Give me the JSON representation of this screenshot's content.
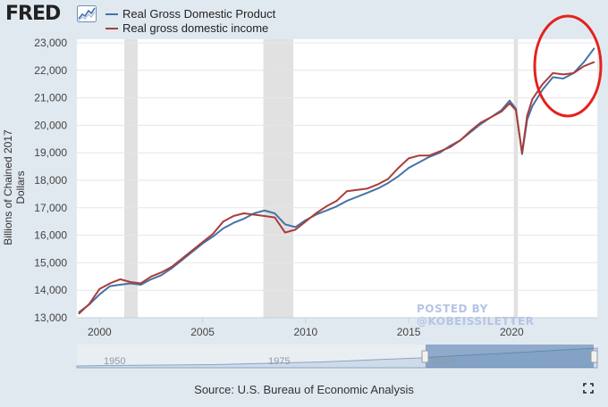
{
  "header": {
    "logo_text": "FRED",
    "logo_icon": "trend-chart-icon"
  },
  "legend": [
    {
      "label": "Real Gross Domestic Product",
      "color": "#4572a7"
    },
    {
      "label": "Real gross domestic income",
      "color": "#aa3d3a"
    }
  ],
  "watermark": "POSTED BY @KOBEISSILETTER",
  "source": "Source: U.S. Bureau of Economic Analysis",
  "navigator": {
    "labels": [
      "1950",
      "1975",
      "2000"
    ]
  },
  "annotation": {
    "shape": "ellipse",
    "color": "#e3221d"
  },
  "chart_data": {
    "type": "line",
    "ylabel": "Billions of Chained 2017 Dollars",
    "xlim": [
      1998.9,
      2024.15
    ],
    "ylim": [
      13000,
      23000
    ],
    "yticks": [
      13000,
      14000,
      15000,
      16000,
      17000,
      18000,
      19000,
      20000,
      21000,
      22000,
      23000
    ],
    "ytick_labels": [
      "13,000",
      "14,000",
      "15,000",
      "16,000",
      "17,000",
      "18,000",
      "19,000",
      "20,000",
      "21,000",
      "22,000",
      "23,000"
    ],
    "xticks": [
      2000,
      2005,
      2010,
      2015,
      2020
    ],
    "xtick_labels": [
      "2000",
      "2005",
      "2010",
      "2015",
      "2020"
    ],
    "grid": "horizontal",
    "legend_position": "top-left",
    "recessions": [
      [
        2001.2,
        2001.85
      ],
      [
        2007.95,
        2009.4
      ],
      [
        2020.1,
        2020.3
      ]
    ],
    "series": [
      {
        "name": "Real Gross Domestic Product",
        "color": "#4572a7",
        "x": [
          1999.0,
          1999.5,
          2000.0,
          2000.5,
          2001.0,
          2001.5,
          2002.0,
          2002.5,
          2003.0,
          2003.5,
          2004.0,
          2004.5,
          2005.0,
          2005.5,
          2006.0,
          2006.5,
          2007.0,
          2007.5,
          2008.0,
          2008.5,
          2009.0,
          2009.5,
          2010.0,
          2010.5,
          2011.0,
          2011.5,
          2012.0,
          2012.5,
          2013.0,
          2013.5,
          2014.0,
          2014.5,
          2015.0,
          2015.5,
          2016.0,
          2016.5,
          2017.0,
          2017.5,
          2018.0,
          2018.5,
          2019.0,
          2019.5,
          2019.9,
          2020.2,
          2020.5,
          2020.75,
          2021.0,
          2021.5,
          2022.0,
          2022.5,
          2023.0,
          2023.5,
          2024.0
        ],
        "values": [
          13200,
          13480,
          13850,
          14150,
          14200,
          14250,
          14200,
          14400,
          14550,
          14800,
          15100,
          15400,
          15700,
          15950,
          16250,
          16450,
          16600,
          16800,
          16900,
          16800,
          16400,
          16300,
          16550,
          16750,
          16900,
          17050,
          17250,
          17400,
          17550,
          17700,
          17900,
          18150,
          18450,
          18650,
          18850,
          19000,
          19250,
          19450,
          19750,
          20050,
          20300,
          20550,
          20900,
          20600,
          18950,
          20200,
          20700,
          21300,
          21750,
          21700,
          21900,
          22300,
          22800
        ]
      },
      {
        "name": "Real gross domestic income",
        "color": "#aa3d3a",
        "x": [
          1999.0,
          1999.5,
          2000.0,
          2000.5,
          2001.0,
          2001.5,
          2002.0,
          2002.5,
          2003.0,
          2003.5,
          2004.0,
          2004.5,
          2005.0,
          2005.5,
          2006.0,
          2006.5,
          2007.0,
          2007.5,
          2008.0,
          2008.5,
          2009.0,
          2009.5,
          2010.0,
          2010.5,
          2011.0,
          2011.5,
          2012.0,
          2012.5,
          2013.0,
          2013.5,
          2014.0,
          2014.5,
          2015.0,
          2015.5,
          2016.0,
          2016.5,
          2017.0,
          2017.5,
          2018.0,
          2018.5,
          2019.0,
          2019.5,
          2019.9,
          2020.2,
          2020.5,
          2020.75,
          2021.0,
          2021.5,
          2022.0,
          2022.5,
          2023.0,
          2023.5,
          2024.0
        ],
        "values": [
          13150,
          13500,
          14050,
          14250,
          14400,
          14300,
          14250,
          14500,
          14650,
          14850,
          15150,
          15450,
          15750,
          16050,
          16500,
          16700,
          16800,
          16750,
          16700,
          16650,
          16100,
          16200,
          16500,
          16800,
          17050,
          17250,
          17600,
          17650,
          17700,
          17850,
          18050,
          18450,
          18800,
          18900,
          18900,
          19050,
          19200,
          19450,
          19800,
          20100,
          20300,
          20500,
          20800,
          20550,
          19000,
          20350,
          20950,
          21500,
          21900,
          21850,
          21900,
          22150,
          22300
        ]
      }
    ]
  }
}
